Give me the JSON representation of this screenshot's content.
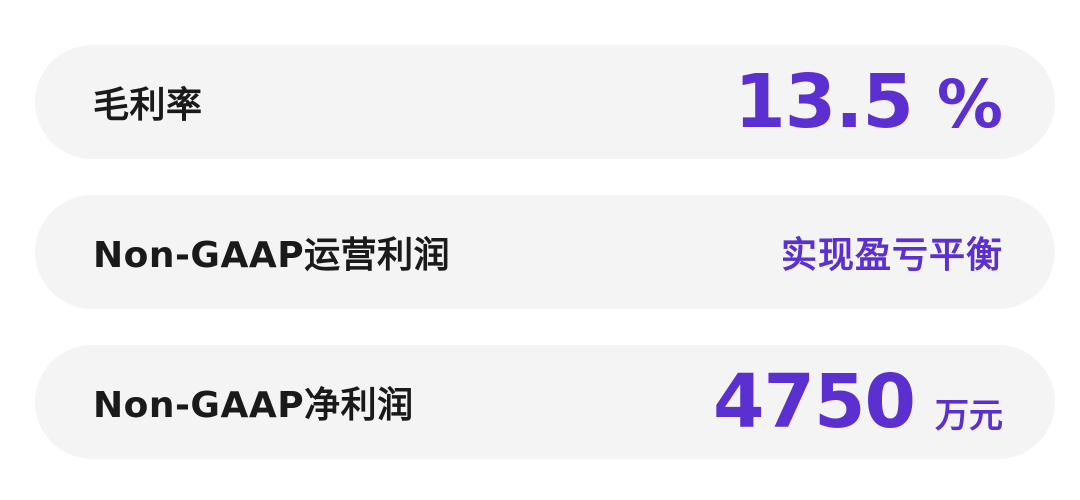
{
  "metrics": [
    {
      "label": "毛利率",
      "value": "13.5",
      "unit": "%"
    },
    {
      "label": "Non-GAAP运营利润",
      "value": "实现盈亏平衡"
    },
    {
      "label": "Non-GAAP净利润",
      "value": "4750",
      "unit": "万元"
    }
  ],
  "colors": {
    "accent": "#5b2fd0",
    "card_bg": "#f4f4f5",
    "label": "#1a1a1a"
  }
}
